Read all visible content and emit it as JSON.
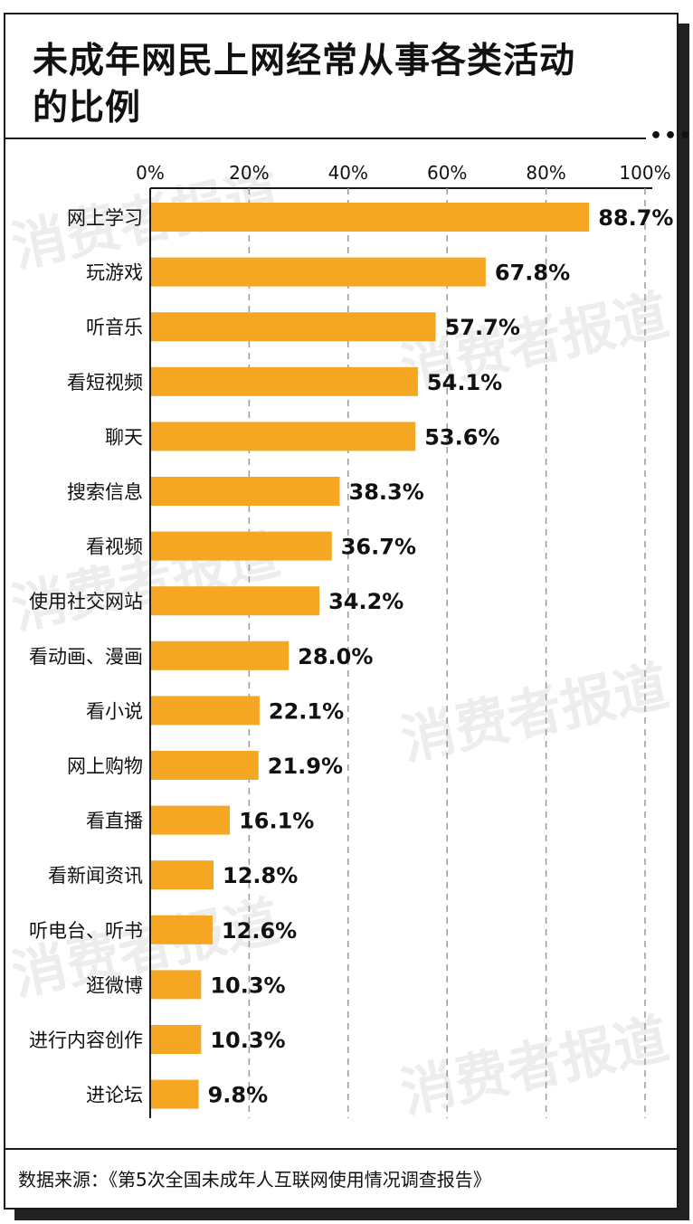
{
  "title": "未成年网民上网经常从事各类活动的比例",
  "source": "数据来源：《第5次全国未成年人互联网使用情况调查报告》",
  "watermark": "消费者报道",
  "bar_color": "#F5A623",
  "chart_data": {
    "type": "bar",
    "orientation": "horizontal",
    "categories": [
      "网上学习",
      "玩游戏",
      "听音乐",
      "看短视频",
      "聊天",
      "搜索信息",
      "看视频",
      "使用社交网站",
      "看动画、漫画",
      "看小说",
      "网上购物",
      "看直播",
      "看新闻资讯",
      "听电台、听书",
      "逛微博",
      "进行内容创作",
      "进论坛"
    ],
    "values": [
      88.7,
      67.8,
      57.7,
      54.1,
      53.6,
      38.3,
      36.7,
      34.2,
      28.0,
      22.1,
      21.9,
      16.1,
      12.8,
      12.6,
      10.3,
      10.3,
      9.8
    ],
    "value_labels": [
      "88.7%",
      "67.8%",
      "57.7%",
      "54.1%",
      "53.6%",
      "38.3%",
      "36.7%",
      "34.2%",
      "28.0%",
      "22.1%",
      "21.9%",
      "16.1%",
      "12.8%",
      "12.6%",
      "10.3%",
      "10.3%",
      "9.8%"
    ],
    "x_ticks": [
      0,
      20,
      40,
      60,
      80,
      100
    ],
    "x_tick_labels": [
      "0%",
      "20%",
      "40%",
      "60%",
      "80%",
      "100%"
    ],
    "xlim": [
      0,
      100
    ],
    "grid": "vertical dashed",
    "axis_position": "top"
  }
}
